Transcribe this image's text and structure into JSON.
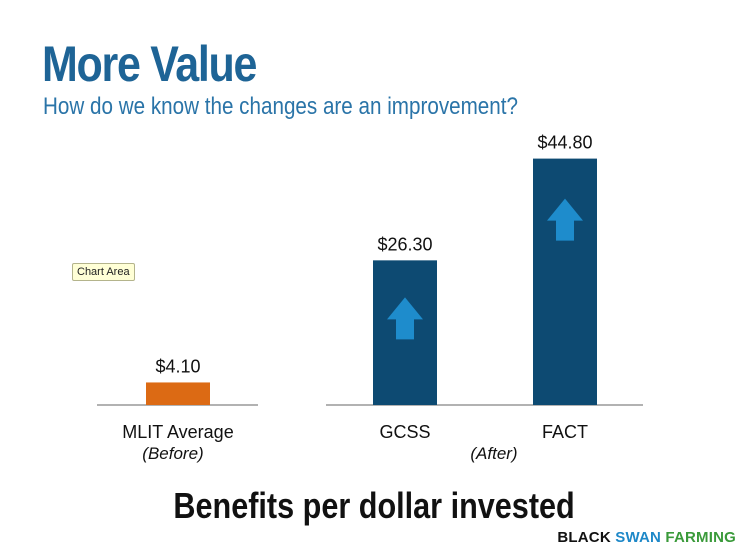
{
  "slide": {
    "title": "More Value",
    "subtitle": "How do we know the changes are an improvement?",
    "tooltip": "Chart Area",
    "caption": "Benefits per dollar invested",
    "brand": {
      "word1": "BLACK",
      "word2": "SWAN",
      "word3": "FARMING"
    }
  },
  "colors": {
    "title": "#1e6496",
    "before_bar": "#dc6a14",
    "after_bar": "#0d4a72",
    "arrow": "#1e8ccc",
    "baseline": "#999999"
  },
  "chart_data": {
    "type": "bar",
    "title": "",
    "ylim": [
      0,
      50
    ],
    "grid": false,
    "groups": [
      {
        "label": "(Before)",
        "categories": [
          "MLIT Average"
        ],
        "values": [
          4.1
        ],
        "value_labels": [
          "$4.10"
        ]
      },
      {
        "label": "(After)",
        "categories": [
          "GCSS",
          "FACT"
        ],
        "values": [
          26.3,
          44.8
        ],
        "value_labels": [
          "$26.30",
          "$44.80"
        ]
      }
    ]
  }
}
